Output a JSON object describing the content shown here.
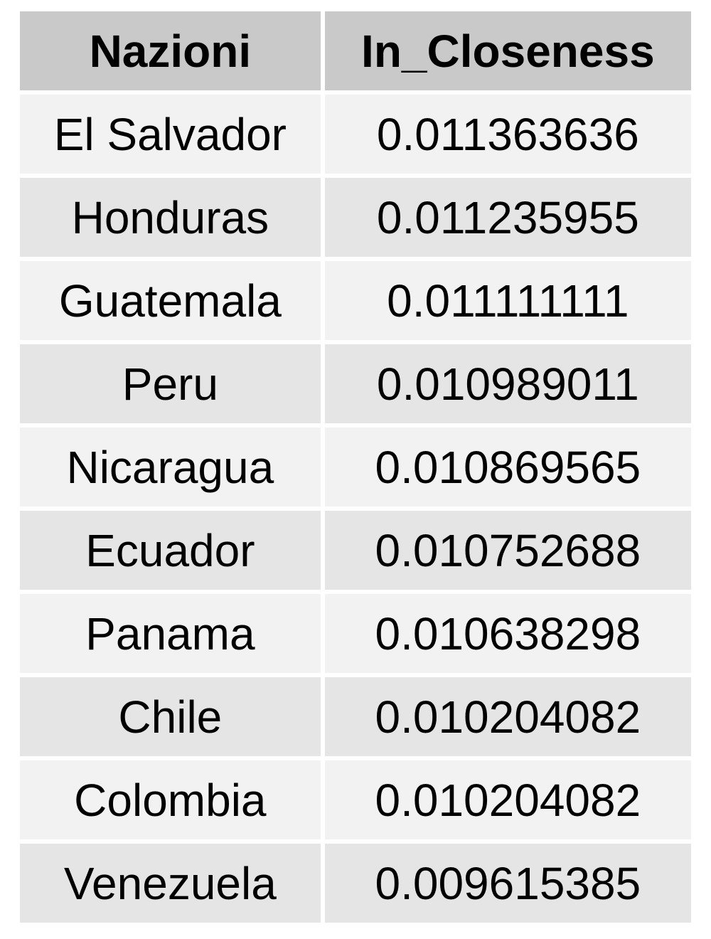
{
  "table": {
    "headers": [
      "Nazioni",
      "In_Closeness"
    ],
    "rows": [
      [
        "El Salvador",
        "0.011363636"
      ],
      [
        "Honduras",
        "0.011235955"
      ],
      [
        "Guatemala",
        "0.011111111"
      ],
      [
        "Peru",
        "0.010989011"
      ],
      [
        "Nicaragua",
        "0.010869565"
      ],
      [
        "Ecuador",
        "0.010752688"
      ],
      [
        "Panama",
        "0.010638298"
      ],
      [
        "Chile",
        "0.010204082"
      ],
      [
        "Colombia",
        "0.010204082"
      ],
      [
        "Venezuela",
        "0.009615385"
      ]
    ],
    "colors": {
      "header_bg": "#c9c9c9",
      "row_odd_bg": "#f2f2f2",
      "row_even_bg": "#e5e5e5"
    }
  }
}
